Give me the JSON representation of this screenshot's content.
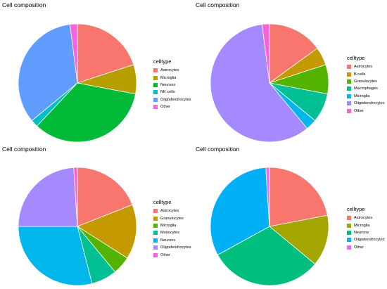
{
  "chart_data": [
    {
      "type": "pie",
      "title": "Cell composition",
      "legend_title": "celltype",
      "legend_position": "right",
      "categories": [
        "Astrocytes",
        "Microglia",
        "Neurons",
        "NK cells",
        "Oligodendrocytes",
        "Other"
      ],
      "values": [
        20,
        8,
        34,
        2,
        34,
        2
      ],
      "colors": [
        "#F8766D",
        "#B79F00",
        "#00BA38",
        "#00BFC4",
        "#619CFF",
        "#F564E3"
      ]
    },
    {
      "type": "pie",
      "title": "Cell composition",
      "legend_title": "celltype",
      "legend_position": "right",
      "categories": [
        "Astrocytes",
        "B.cells",
        "Granulocytes",
        "Macrophages",
        "Microglia",
        "Oligodendrocytes",
        "Other"
      ],
      "values": [
        15,
        5,
        8,
        8,
        3,
        59,
        2
      ],
      "colors": [
        "#F8766D",
        "#C49A00",
        "#53B400",
        "#00C094",
        "#00B6EB",
        "#A58AFF",
        "#FB61D7"
      ]
    },
    {
      "type": "pie",
      "title": "Cell composition",
      "legend_title": "celltype",
      "legend_position": "right",
      "categories": [
        "Astrocytes",
        "Granulocytes",
        "Microglia",
        "Monocytes",
        "Neurons",
        "Oligodendrocytes",
        "Other"
      ],
      "values": [
        19,
        15,
        5,
        7,
        29,
        24,
        1
      ],
      "colors": [
        "#F8766D",
        "#C49A00",
        "#53B400",
        "#00C094",
        "#00B6EB",
        "#A58AFF",
        "#FB61D7"
      ]
    },
    {
      "type": "pie",
      "title": "Cell composition",
      "legend_title": "celltype",
      "legend_position": "right",
      "categories": [
        "Astrocytes",
        "Microglia",
        "Neurons",
        "Oligodendrocytes",
        "Other"
      ],
      "values": [
        22,
        14,
        31,
        32,
        1
      ],
      "colors": [
        "#F8766D",
        "#A3A500",
        "#00BF7D",
        "#00B0F6",
        "#E76BF3"
      ]
    }
  ]
}
